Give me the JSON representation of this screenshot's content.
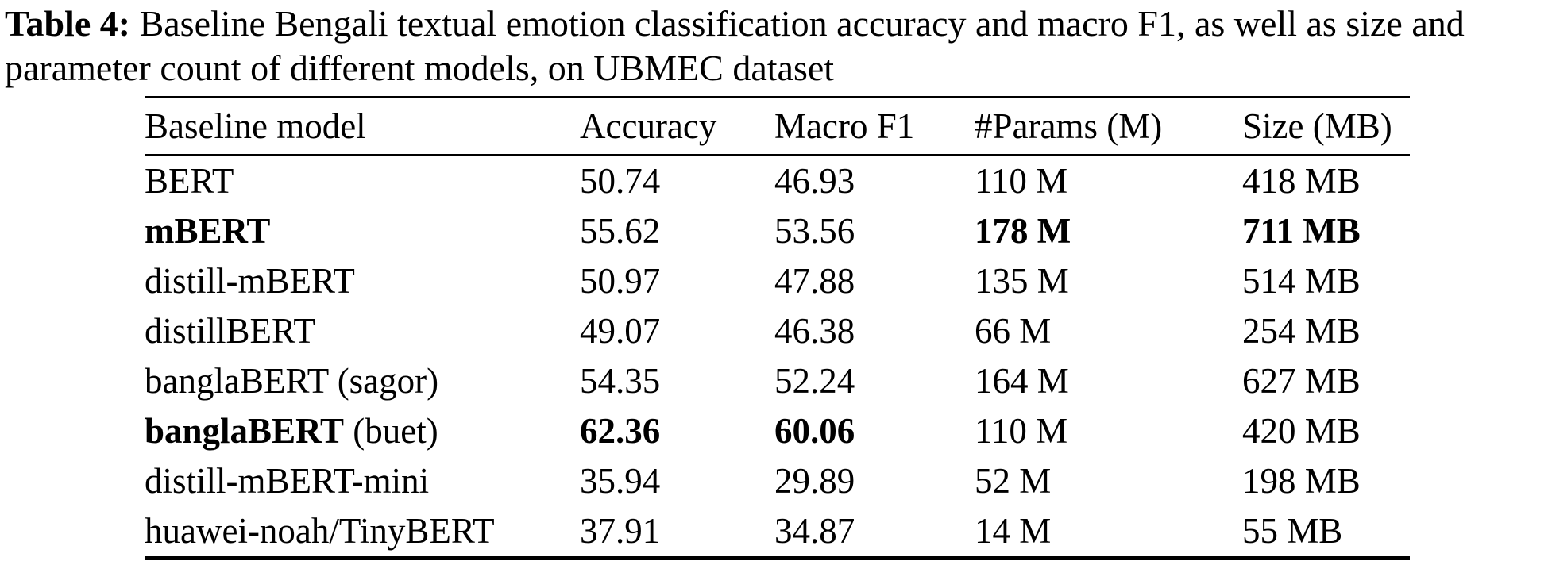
{
  "caption": {
    "label": "Table 4:",
    "text": "Baseline Bengali textual emotion classification accuracy and macro F1, as well as size and parameter count of different models, on UBMEC dataset"
  },
  "table": {
    "columns": {
      "model": "Baseline model",
      "accuracy": "Accuracy",
      "macro_f1": "Macro F1",
      "params": "#Params (M)",
      "size": "Size (MB)"
    },
    "rows": [
      {
        "name_bold": "",
        "name": "BERT",
        "accuracy": "50.74",
        "macro_f1": "46.93",
        "params": "110 M",
        "size": "418 MB"
      },
      {
        "name_bold": "mBERT",
        "name": "",
        "accuracy": "55.62",
        "macro_f1": "53.56",
        "params": "178 M",
        "size": "711 MB"
      },
      {
        "name_bold": "",
        "name": "distill-mBERT",
        "accuracy": "50.97",
        "macro_f1": "47.88",
        "params": "135 M",
        "size": "514 MB"
      },
      {
        "name_bold": "",
        "name": "distillBERT",
        "accuracy": "49.07",
        "macro_f1": "46.38",
        "params": "66 M",
        "size": "254 MB"
      },
      {
        "name_bold": "",
        "name": "banglaBERT (sagor)",
        "accuracy": "54.35",
        "macro_f1": "52.24",
        "params": "164 M",
        "size": "627 MB"
      },
      {
        "name_bold": "banglaBERT",
        "name": " (buet)",
        "accuracy": "62.36",
        "macro_f1": "60.06",
        "params": "110 M",
        "size": "420 MB"
      },
      {
        "name_bold": "",
        "name": "distill-mBERT-mini",
        "accuracy": "35.94",
        "macro_f1": "29.89",
        "params": "52 M",
        "size": "198 MB"
      },
      {
        "name_bold": "",
        "name": "huawei-noah/TinyBERT",
        "accuracy": "37.91",
        "macro_f1": "34.87",
        "params": "14 M",
        "size": "55 MB"
      }
    ]
  },
  "chart_data": {
    "type": "table",
    "title": "Table 4: Baseline Bengali textual emotion classification accuracy and macro F1, as well as size and parameter count of different models, on UBMEC dataset",
    "columns": [
      "Baseline model",
      "Accuracy",
      "Macro F1",
      "#Params (M)",
      "Size (MB)"
    ],
    "rows": [
      [
        "BERT",
        50.74,
        46.93,
        "110 M",
        "418 MB"
      ],
      [
        "mBERT",
        55.62,
        53.56,
        "178 M",
        "711 MB"
      ],
      [
        "distill-mBERT",
        50.97,
        47.88,
        "135 M",
        "514 MB"
      ],
      [
        "distillBERT",
        49.07,
        46.38,
        "66 M",
        "254 MB"
      ],
      [
        "banglaBERT (sagor)",
        54.35,
        52.24,
        "164 M",
        "627 MB"
      ],
      [
        "banglaBERT (buet)",
        62.36,
        60.06,
        "110 M",
        "420 MB"
      ],
      [
        "distill-mBERT-mini",
        35.94,
        29.89,
        "52 M",
        "198 MB"
      ],
      [
        "huawei-noah/TinyBERT",
        37.91,
        34.87,
        "14 M",
        "55 MB"
      ]
    ]
  }
}
